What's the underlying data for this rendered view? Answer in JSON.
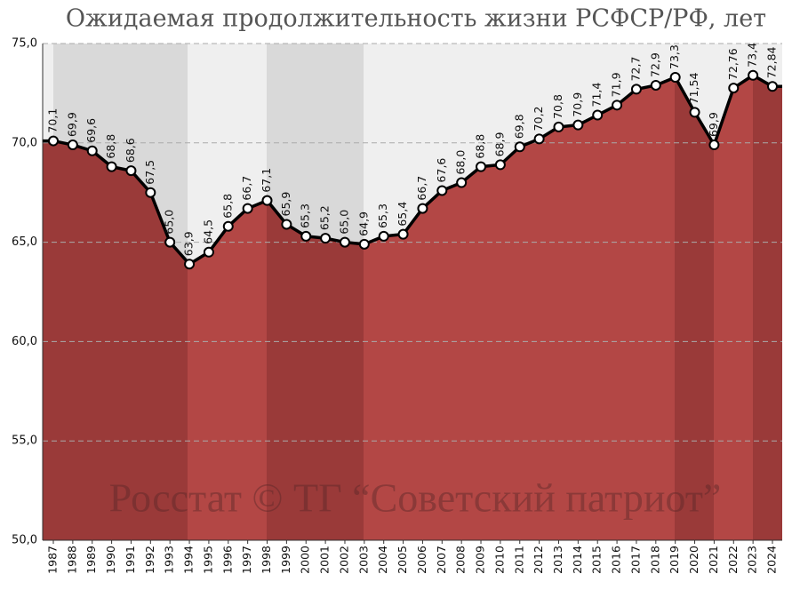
{
  "chart_data": {
    "type": "line",
    "title": "Ожидаемая продолжительность жизни РСФСР/РФ, лет",
    "watermark": "Росстат © ТГ “Советский патриот”",
    "categories": [
      "1987",
      "1988",
      "1989",
      "1990",
      "1991",
      "1992",
      "1993",
      "1994",
      "1995",
      "1996",
      "1997",
      "1998",
      "1999",
      "2000",
      "2001",
      "2002",
      "2003",
      "2004",
      "2005",
      "2006",
      "2007",
      "2008",
      "2009",
      "2010",
      "2011",
      "2012",
      "2013",
      "2014",
      "2015",
      "2016",
      "2017",
      "2018",
      "2019",
      "2020",
      "2021",
      "2022",
      "2023",
      "2024"
    ],
    "values": [
      70.1,
      69.9,
      69.6,
      68.8,
      68.6,
      67.5,
      65.0,
      63.9,
      64.5,
      65.8,
      66.7,
      67.1,
      65.9,
      65.3,
      65.2,
      65.0,
      64.9,
      65.3,
      65.4,
      66.7,
      67.6,
      68.0,
      68.8,
      68.9,
      69.8,
      70.2,
      70.8,
      70.9,
      71.4,
      71.9,
      72.7,
      72.9,
      73.3,
      71.54,
      69.9,
      72.76,
      73.4,
      72.84
    ],
    "value_labels": [
      "70,1",
      "69,9",
      "69,6",
      "68,8",
      "68,6",
      "67,5",
      "65,0",
      "63,9",
      "64,5",
      "65,8",
      "66,7",
      "67,1",
      "65,9",
      "65,3",
      "65,2",
      "65,0",
      "64,9",
      "65,3",
      "65,4",
      "66,7",
      "67,6",
      "68,0",
      "68,8",
      "68,9",
      "69,8",
      "70,2",
      "70,8",
      "70,9",
      "71,4",
      "71,9",
      "72,7",
      "72,9",
      "73,3",
      "71,54",
      "69,9",
      "72,76",
      "73,4",
      "72,84"
    ],
    "color": "#b34745",
    "ylim": [
      50,
      75
    ],
    "yticks": [
      {
        "value": 50,
        "label": "50,0"
      },
      {
        "value": 55,
        "label": "55,0"
      },
      {
        "value": 60,
        "label": "60,0"
      },
      {
        "value": 65,
        "label": "65,0"
      },
      {
        "value": 70,
        "label": "70,0"
      },
      {
        "value": 75,
        "label": "75,0"
      }
    ],
    "grid": true
  }
}
